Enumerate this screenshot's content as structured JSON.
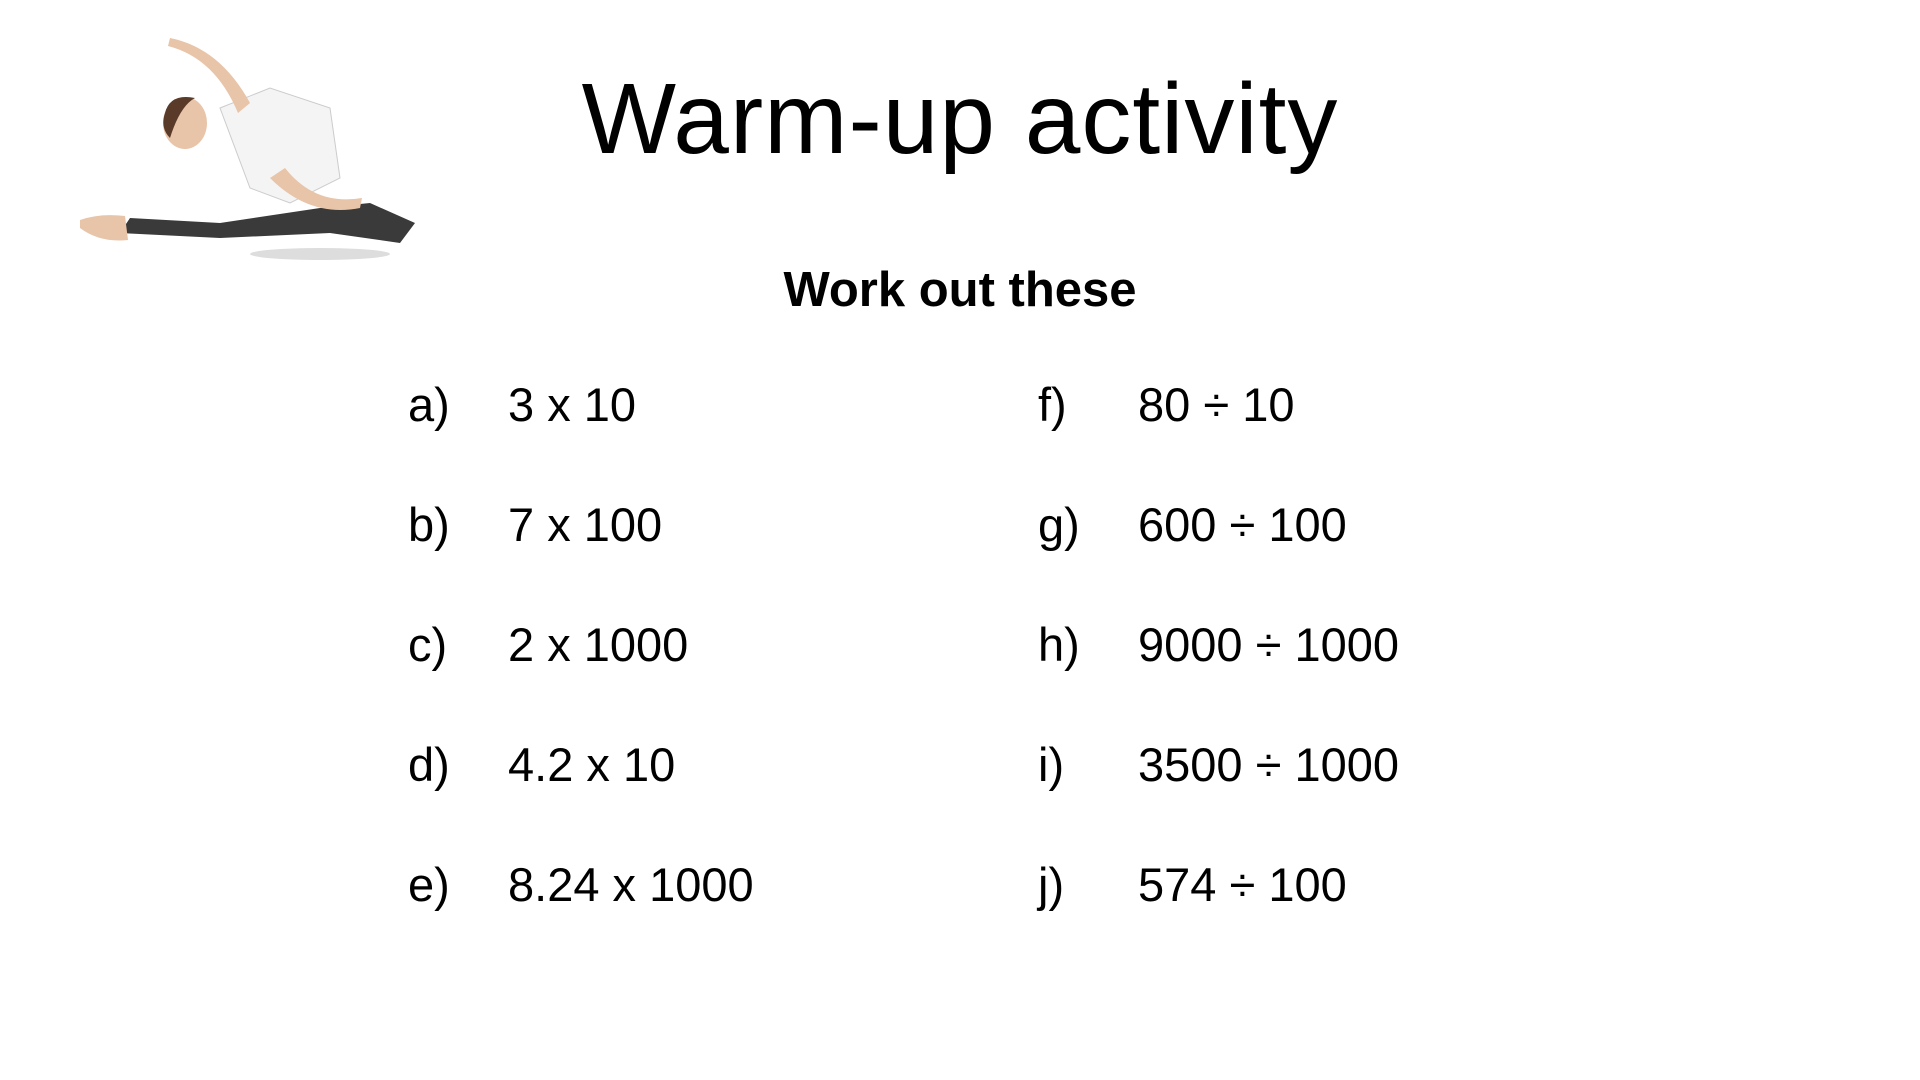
{
  "title": "Warm-up activity",
  "subtitle": "Work out these",
  "left_questions": [
    {
      "label": "a)",
      "expression": "3 x 10"
    },
    {
      "label": "b)",
      "expression": "7 x 100"
    },
    {
      "label": "c)",
      "expression": "2 x 1000"
    },
    {
      "label": "d)",
      "expression": "4.2 x 10"
    },
    {
      "label": "e)",
      "expression": "8.24 x 1000"
    }
  ],
  "right_questions": [
    {
      "label": "f)",
      "expression": "80 ÷ 10"
    },
    {
      "label": "g)",
      "expression": "600 ÷ 100"
    },
    {
      "label": "h)",
      "expression": "9000 ÷ 1000"
    },
    {
      "label": "i)",
      "expression": "3500 ÷ 1000"
    },
    {
      "label": "j)",
      "expression": "574 ÷ 100"
    }
  ]
}
